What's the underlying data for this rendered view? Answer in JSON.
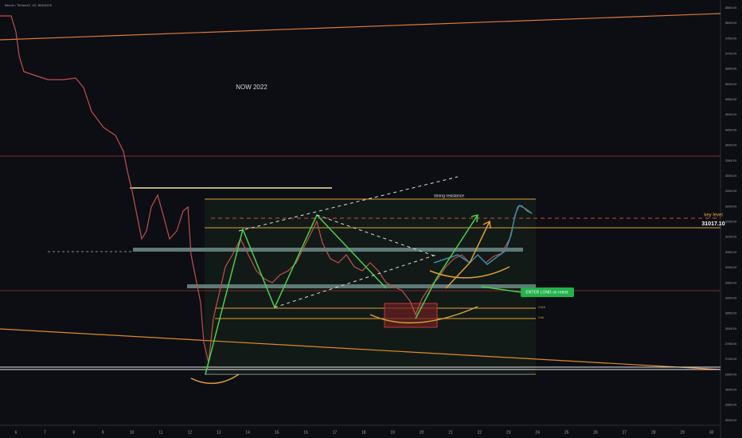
{
  "header": {
    "symbol": "Bitcoin / TetherUS, 1D, BINANCE"
  },
  "annotations": {
    "now": "NOW 2022",
    "resistance": "strong resistance",
    "key_level": "key level",
    "key_price": "31017.10",
    "entry": "ENTER LONG on retest",
    "fib_618": "0.618",
    "fib_66": "0.66"
  },
  "x_axis": [
    "6",
    "7",
    "8",
    "9",
    "10",
    "11",
    "12",
    "13",
    "14",
    "15",
    "16",
    "17",
    "18",
    "19",
    "20",
    "21",
    "22",
    "23",
    "24",
    "25",
    "26",
    "27",
    "28",
    "29",
    "30"
  ],
  "price_axis": [
    "38500.00",
    "38000.00",
    "37500.00",
    "37000.00",
    "36500.00",
    "36000.00",
    "35500.00",
    "35000.00",
    "34500.00",
    "34000.00",
    "33500.00",
    "33000.00",
    "32500.00",
    "32000.00",
    "31500.00",
    "31000.00",
    "30500.00",
    "30000.00",
    "29500.00",
    "29000.00",
    "28500.00",
    "28000.00",
    "27500.00",
    "27000.00",
    "26500.00",
    "26000.00",
    "25500.00",
    "25000.00"
  ]
}
